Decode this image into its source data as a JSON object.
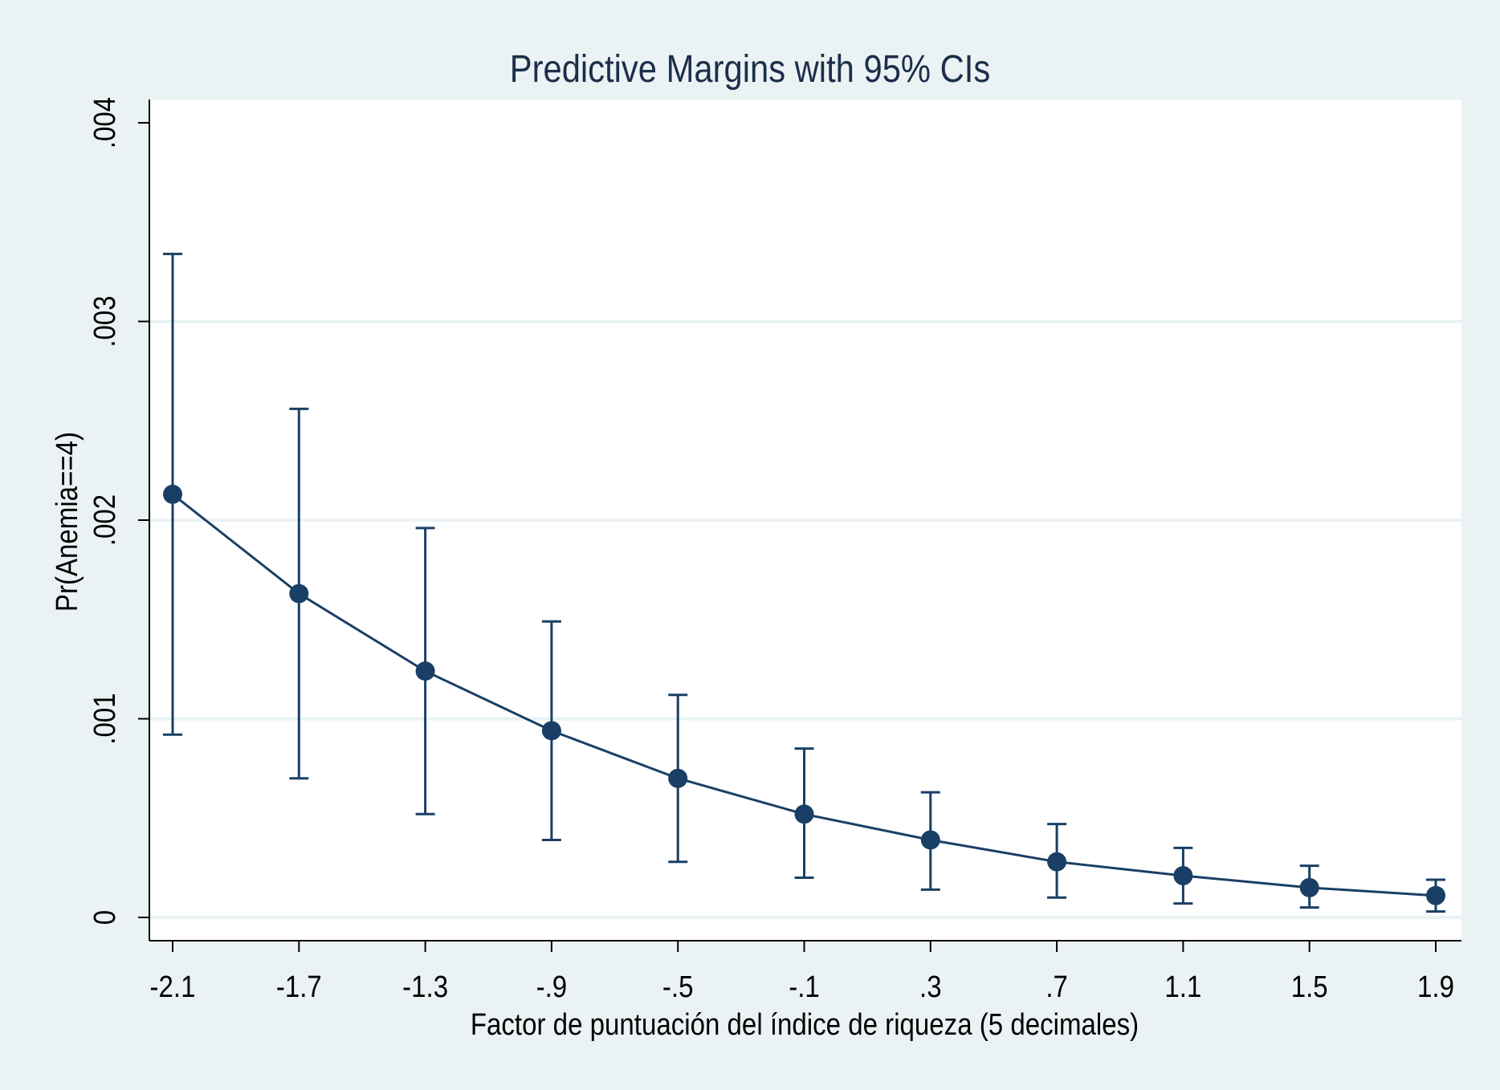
{
  "chart_data": {
    "type": "line",
    "title": "Predictive Margins with 95% CIs",
    "xlabel": "Factor de puntuación del índice de riqueza (5 decimales)",
    "ylabel": "Pr(Anemia==4)",
    "x": [
      -2.1,
      -1.7,
      -1.3,
      -0.9,
      -0.5,
      -0.1,
      0.3,
      0.7,
      1.1,
      1.5,
      1.9
    ],
    "x_tick_labels": [
      "-2.1",
      "-1.7",
      "-1.3",
      "-.9",
      "-.5",
      "-.1",
      ".3",
      ".7",
      "1.1",
      "1.5",
      "1.9"
    ],
    "y": [
      0.00213,
      0.00163,
      0.00124,
      0.00094,
      0.0007,
      0.00052,
      0.00039,
      0.00028,
      0.00021,
      0.00015,
      0.00011
    ],
    "ci_low": [
      0.00092,
      0.0007,
      0.00052,
      0.00039,
      0.00028,
      0.0002,
      0.00014,
      0.0001,
      7e-05,
      5e-05,
      3e-05
    ],
    "ci_high": [
      0.00334,
      0.00256,
      0.00196,
      0.00149,
      0.00112,
      0.00085,
      0.00063,
      0.00047,
      0.00035,
      0.00026,
      0.00019
    ],
    "y_ticks": [
      0,
      0.001,
      0.002,
      0.003,
      0.004
    ],
    "y_tick_labels": [
      "0",
      ".001",
      ".002",
      ".003",
      ".004"
    ],
    "xlim": [
      -2.1,
      1.9
    ],
    "ylim": [
      0,
      0.004
    ],
    "grid": true,
    "colors": {
      "series": "#1a3f66",
      "background": "#eaf2f3",
      "plot_area": "#ffffff",
      "grid": "#eaf2f3",
      "title": "#1c2e4a"
    }
  }
}
